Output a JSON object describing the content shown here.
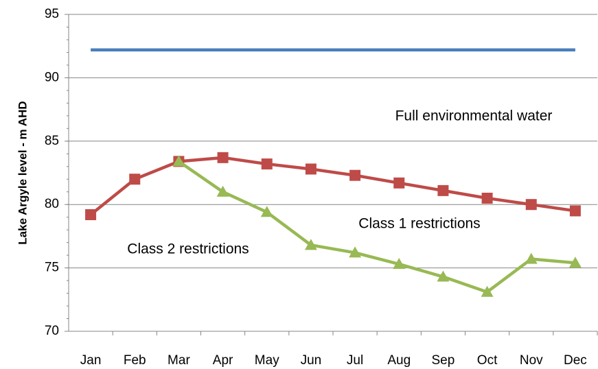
{
  "chart_data": {
    "type": "line",
    "y_label": "Lake Argyle level - m AHD",
    "annotations": [
      "Full environmental water",
      "Class 1 restrictions",
      "Class 2 restrictions"
    ],
    "categories": [
      "Jan",
      "Feb",
      "Mar",
      "Apr",
      "May",
      "Jun",
      "Jul",
      "Aug",
      "Sep",
      "Oct",
      "Nov",
      "Dec"
    ],
    "series": [
      {
        "color": "#4a7ebb",
        "marker": "none",
        "values": [
          92.2,
          92.2,
          92.2,
          92.2,
          92.2,
          92.2,
          92.2,
          92.2,
          92.2,
          92.2,
          92.2,
          92.2
        ]
      },
      {
        "color": "#be4b48",
        "marker": "square",
        "values": [
          79.2,
          82.0,
          83.4,
          83.7,
          83.2,
          82.8,
          82.3,
          81.7,
          81.1,
          80.5,
          80.0,
          79.5
        ]
      },
      {
        "color": "#98b954",
        "marker": "triangle",
        "values": [
          null,
          null,
          83.4,
          81.0,
          79.4,
          76.8,
          76.2,
          75.3,
          74.3,
          73.1,
          75.7,
          75.4
        ]
      }
    ],
    "ylim": [
      70,
      95
    ],
    "yticks": [
      70,
      75,
      80,
      85,
      90,
      95
    ],
    "grid": true
  }
}
